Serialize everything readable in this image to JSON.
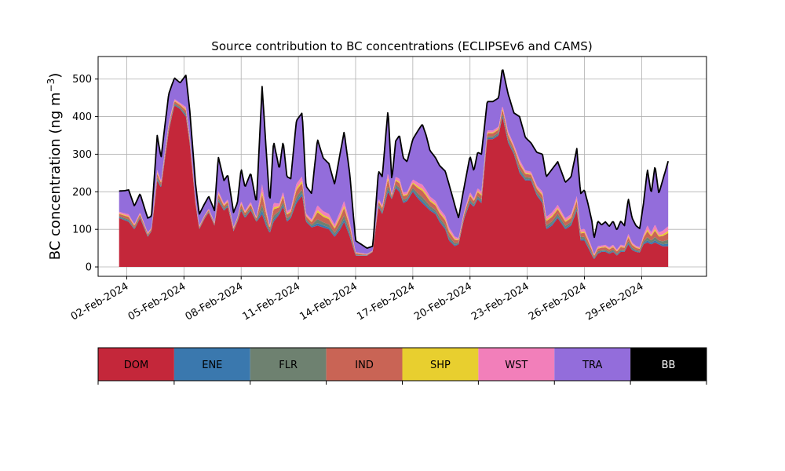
{
  "chart_data": {
    "type": "area",
    "stacked": true,
    "title": "Source contribution to BC concentrations (ECLIPSEv6 and CAMS)",
    "xlabel": "",
    "ylabel_main": "BC concentration (ng m",
    "ylabel_exp": "−3",
    "ylabel_close": ")",
    "ylim": [
      -25,
      560
    ],
    "yticks": [
      0,
      100,
      200,
      300,
      400,
      500
    ],
    "x_start_day": 0.6,
    "x_end_day": 29.4,
    "xlim_days": [
      -0.5,
      31.4
    ],
    "xticks": [
      {
        "day": 1,
        "label": "02-Feb-2024"
      },
      {
        "day": 4,
        "label": "05-Feb-2024"
      },
      {
        "day": 7,
        "label": "08-Feb-2024"
      },
      {
        "day": 10,
        "label": "11-Feb-2024"
      },
      {
        "day": 13,
        "label": "14-Feb-2024"
      },
      {
        "day": 16,
        "label": "17-Feb-2024"
      },
      {
        "day": 19,
        "label": "20-Feb-2024"
      },
      {
        "day": 22,
        "label": "23-Feb-2024"
      },
      {
        "day": 25,
        "label": "26-Feb-2024"
      },
      {
        "day": 28,
        "label": "29-Feb-2024"
      }
    ],
    "grid": true,
    "total_keypoints": [
      [
        0.6,
        202
      ],
      [
        0.9,
        203
      ],
      [
        1.1,
        205
      ],
      [
        1.4,
        162
      ],
      [
        1.7,
        195
      ],
      [
        1.9,
        162
      ],
      [
        2.1,
        130
      ],
      [
        2.3,
        135
      ],
      [
        2.6,
        350
      ],
      [
        2.8,
        290
      ],
      [
        3.2,
        460
      ],
      [
        3.5,
        503
      ],
      [
        3.8,
        490
      ],
      [
        4.1,
        510
      ],
      [
        4.3,
        420
      ],
      [
        4.6,
        225
      ],
      [
        4.8,
        140
      ],
      [
        5.1,
        170
      ],
      [
        5.3,
        188
      ],
      [
        5.6,
        150
      ],
      [
        5.8,
        293
      ],
      [
        6.1,
        230
      ],
      [
        6.3,
        245
      ],
      [
        6.6,
        145
      ],
      [
        6.8,
        170
      ],
      [
        7.0,
        262
      ],
      [
        7.2,
        212
      ],
      [
        7.5,
        250
      ],
      [
        7.8,
        170
      ],
      [
        8.1,
        480
      ],
      [
        8.3,
        320
      ],
      [
        8.5,
        170
      ],
      [
        8.7,
        335
      ],
      [
        9.0,
        260
      ],
      [
        9.2,
        335
      ],
      [
        9.4,
        240
      ],
      [
        9.6,
        235
      ],
      [
        9.9,
        390
      ],
      [
        10.2,
        410
      ],
      [
        10.4,
        215
      ],
      [
        10.7,
        195
      ],
      [
        11.0,
        340
      ],
      [
        11.3,
        290
      ],
      [
        11.6,
        275
      ],
      [
        11.9,
        220
      ],
      [
        12.2,
        305
      ],
      [
        12.4,
        360
      ],
      [
        12.7,
        245
      ],
      [
        13.0,
        70
      ],
      [
        13.3,
        60
      ],
      [
        13.6,
        50
      ],
      [
        13.9,
        55
      ],
      [
        14.2,
        255
      ],
      [
        14.4,
        240
      ],
      [
        14.7,
        420
      ],
      [
        14.9,
        230
      ],
      [
        15.1,
        335
      ],
      [
        15.3,
        350
      ],
      [
        15.5,
        290
      ],
      [
        15.7,
        280
      ],
      [
        16.0,
        340
      ],
      [
        16.3,
        365
      ],
      [
        16.5,
        380
      ],
      [
        16.7,
        350
      ],
      [
        16.9,
        310
      ],
      [
        17.2,
        290
      ],
      [
        17.4,
        270
      ],
      [
        17.7,
        255
      ],
      [
        17.9,
        220
      ],
      [
        18.2,
        165
      ],
      [
        18.4,
        130
      ],
      [
        18.7,
        215
      ],
      [
        19.0,
        295
      ],
      [
        19.2,
        255
      ],
      [
        19.4,
        305
      ],
      [
        19.6,
        300
      ],
      [
        19.9,
        440
      ],
      [
        20.2,
        440
      ],
      [
        20.5,
        450
      ],
      [
        20.7,
        530
      ],
      [
        21.0,
        460
      ],
      [
        21.3,
        410
      ],
      [
        21.6,
        400
      ],
      [
        21.9,
        345
      ],
      [
        22.2,
        330
      ],
      [
        22.5,
        305
      ],
      [
        22.8,
        300
      ],
      [
        23.0,
        240
      ],
      [
        23.3,
        260
      ],
      [
        23.6,
        280
      ],
      [
        24.0,
        225
      ],
      [
        24.3,
        240
      ],
      [
        24.6,
        315
      ],
      [
        24.8,
        195
      ],
      [
        25.0,
        205
      ],
      [
        25.2,
        165
      ],
      [
        25.4,
        120
      ],
      [
        25.5,
        75
      ],
      [
        25.7,
        122
      ],
      [
        25.9,
        112
      ],
      [
        26.1,
        120
      ],
      [
        26.3,
        108
      ],
      [
        26.5,
        122
      ],
      [
        26.7,
        98
      ],
      [
        26.9,
        122
      ],
      [
        27.1,
        110
      ],
      [
        27.3,
        182
      ],
      [
        27.5,
        130
      ],
      [
        27.7,
        110
      ],
      [
        27.9,
        102
      ],
      [
        28.1,
        170
      ],
      [
        28.3,
        260
      ],
      [
        28.5,
        195
      ],
      [
        28.7,
        270
      ],
      [
        28.9,
        195
      ],
      [
        29.1,
        230
      ],
      [
        29.4,
        283
      ]
    ],
    "dom_keypoints": [
      [
        0.6,
        130
      ],
      [
        1.1,
        120
      ],
      [
        1.4,
        100
      ],
      [
        1.7,
        130
      ],
      [
        2.1,
        80
      ],
      [
        2.3,
        95
      ],
      [
        2.6,
        230
      ],
      [
        2.8,
        210
      ],
      [
        3.2,
        360
      ],
      [
        3.5,
        430
      ],
      [
        3.8,
        420
      ],
      [
        4.1,
        400
      ],
      [
        4.3,
        330
      ],
      [
        4.6,
        170
      ],
      [
        4.8,
        100
      ],
      [
        5.1,
        130
      ],
      [
        5.3,
        145
      ],
      [
        5.6,
        110
      ],
      [
        5.8,
        175
      ],
      [
        6.1,
        150
      ],
      [
        6.3,
        160
      ],
      [
        6.6,
        95
      ],
      [
        6.8,
        120
      ],
      [
        7.0,
        150
      ],
      [
        7.2,
        130
      ],
      [
        7.5,
        150
      ],
      [
        7.8,
        120
      ],
      [
        8.1,
        140
      ],
      [
        8.3,
        110
      ],
      [
        8.5,
        90
      ],
      [
        8.7,
        120
      ],
      [
        9.0,
        140
      ],
      [
        9.2,
        160
      ],
      [
        9.4,
        120
      ],
      [
        9.6,
        130
      ],
      [
        9.9,
        170
      ],
      [
        10.2,
        190
      ],
      [
        10.4,
        120
      ],
      [
        10.7,
        105
      ],
      [
        11.0,
        110
      ],
      [
        11.3,
        105
      ],
      [
        11.6,
        100
      ],
      [
        11.9,
        80
      ],
      [
        12.2,
        100
      ],
      [
        12.4,
        120
      ],
      [
        12.7,
        80
      ],
      [
        13.0,
        30
      ],
      [
        13.3,
        30
      ],
      [
        13.6,
        30
      ],
      [
        13.9,
        40
      ],
      [
        14.2,
        160
      ],
      [
        14.4,
        140
      ],
      [
        14.7,
        200
      ],
      [
        14.9,
        180
      ],
      [
        15.1,
        210
      ],
      [
        15.3,
        200
      ],
      [
        15.5,
        170
      ],
      [
        15.7,
        175
      ],
      [
        16.0,
        200
      ],
      [
        16.3,
        180
      ],
      [
        16.5,
        170
      ],
      [
        16.7,
        160
      ],
      [
        16.9,
        150
      ],
      [
        17.2,
        140
      ],
      [
        17.4,
        120
      ],
      [
        17.7,
        100
      ],
      [
        17.9,
        70
      ],
      [
        18.2,
        55
      ],
      [
        18.4,
        60
      ],
      [
        18.7,
        130
      ],
      [
        19.0,
        170
      ],
      [
        19.2,
        160
      ],
      [
        19.4,
        180
      ],
      [
        19.6,
        170
      ],
      [
        19.9,
        340
      ],
      [
        20.2,
        340
      ],
      [
        20.5,
        350
      ],
      [
        20.7,
        400
      ],
      [
        21.0,
        330
      ],
      [
        21.3,
        300
      ],
      [
        21.6,
        250
      ],
      [
        21.9,
        230
      ],
      [
        22.2,
        230
      ],
      [
        22.5,
        190
      ],
      [
        22.8,
        170
      ],
      [
        23.0,
        100
      ],
      [
        23.3,
        110
      ],
      [
        23.6,
        130
      ],
      [
        24.0,
        100
      ],
      [
        24.3,
        110
      ],
      [
        24.6,
        150
      ],
      [
        24.8,
        70
      ],
      [
        25.0,
        70
      ],
      [
        25.2,
        50
      ],
      [
        25.4,
        30
      ],
      [
        25.5,
        20
      ],
      [
        25.7,
        35
      ],
      [
        25.9,
        40
      ],
      [
        26.1,
        40
      ],
      [
        26.3,
        35
      ],
      [
        26.5,
        40
      ],
      [
        26.7,
        30
      ],
      [
        26.9,
        40
      ],
      [
        27.1,
        40
      ],
      [
        27.3,
        60
      ],
      [
        27.5,
        45
      ],
      [
        27.7,
        40
      ],
      [
        27.9,
        38
      ],
      [
        28.1,
        60
      ],
      [
        28.3,
        65
      ],
      [
        28.5,
        60
      ],
      [
        28.7,
        65
      ],
      [
        28.9,
        60
      ],
      [
        29.1,
        55
      ],
      [
        29.4,
        55
      ]
    ],
    "series_order": [
      "DOM",
      "ENE",
      "FLR",
      "IND",
      "SHP",
      "WST",
      "TRA",
      "BB"
    ],
    "series_shares": [
      {
        "name": "ENE",
        "share": 0.03
      },
      {
        "name": "FLR",
        "share": 0.045
      },
      {
        "name": "IND",
        "share": 0.08
      },
      {
        "name": "SHP",
        "share": 0.025
      },
      {
        "name": "WST",
        "share": 0.055
      },
      {
        "name": "TRA",
        "share": 0.765
      }
    ],
    "legend": [
      {
        "label": "DOM",
        "color": "#c4273a",
        "text_color": "#000000"
      },
      {
        "label": "ENE",
        "color": "#3a78ae",
        "text_color": "#000000"
      },
      {
        "label": "FLR",
        "color": "#6e8170",
        "text_color": "#000000"
      },
      {
        "label": "IND",
        "color": "#c96455",
        "text_color": "#000000"
      },
      {
        "label": "SHP",
        "color": "#e8cf2f",
        "text_color": "#000000"
      },
      {
        "label": "WST",
        "color": "#f27fba",
        "text_color": "#000000"
      },
      {
        "label": "TRA",
        "color": "#936ddb",
        "text_color": "#000000"
      },
      {
        "label": "BB",
        "color": "#000000",
        "text_color": "#ffffff"
      }
    ],
    "legend_placement": "bottom (colorbar style)"
  }
}
